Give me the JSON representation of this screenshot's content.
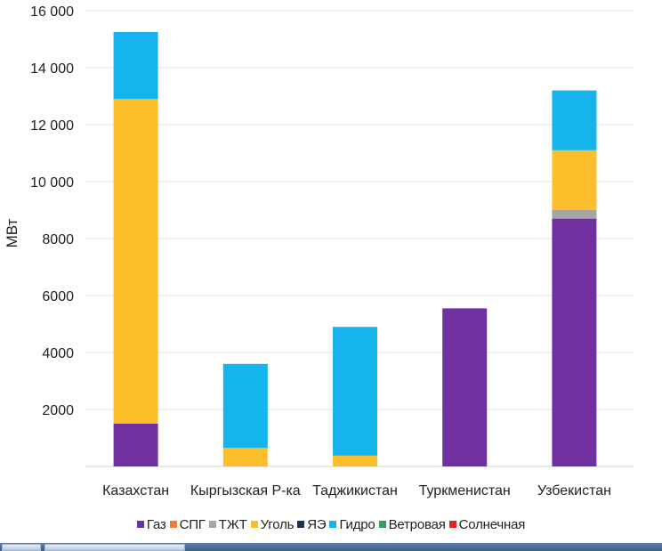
{
  "chart_data": {
    "type": "bar",
    "stacked": true,
    "title": "",
    "xlabel": "",
    "ylabel": "МВт",
    "ylim": [
      0,
      16000
    ],
    "yticks": [
      2000,
      4000,
      6000,
      8000,
      10000,
      12000,
      14000,
      16000
    ],
    "ytick_labels": [
      "2000",
      "4000",
      "6000",
      "8000",
      "10 000",
      "12 000",
      "14 000",
      "16 000"
    ],
    "categories": [
      "Казахстан",
      "Кыргызская Р-ка",
      "Таджикистан",
      "Туркменистан",
      "Узбекистан"
    ],
    "series": [
      {
        "name": "Газ",
        "color": "#7030a0",
        "values": [
          1500,
          0,
          0,
          5550,
          8700
        ]
      },
      {
        "name": "СПГ",
        "color": "#ed7d31",
        "values": [
          0,
          0,
          0,
          0,
          0
        ]
      },
      {
        "name": "ТЖТ",
        "color": "#a5a5a5",
        "values": [
          0,
          0,
          0,
          0,
          300
        ]
      },
      {
        "name": "Уголь",
        "color": "#fbbf2c",
        "values": [
          11400,
          650,
          380,
          0,
          2100
        ]
      },
      {
        "name": "ЯЭ",
        "color": "#1f2f5c",
        "values": [
          0,
          0,
          0,
          0,
          0
        ]
      },
      {
        "name": "Гидро",
        "color": "#16b4ec",
        "values": [
          2350,
          2950,
          4520,
          0,
          2100
        ]
      },
      {
        "name": "Ветровая",
        "color": "#2ca25f",
        "values": [
          0,
          0,
          0,
          0,
          0
        ]
      },
      {
        "name": "Солнечная",
        "color": "#e8202a",
        "values": [
          0,
          0,
          0,
          0,
          0
        ]
      }
    ],
    "legend_position": "bottom",
    "grid": true
  }
}
